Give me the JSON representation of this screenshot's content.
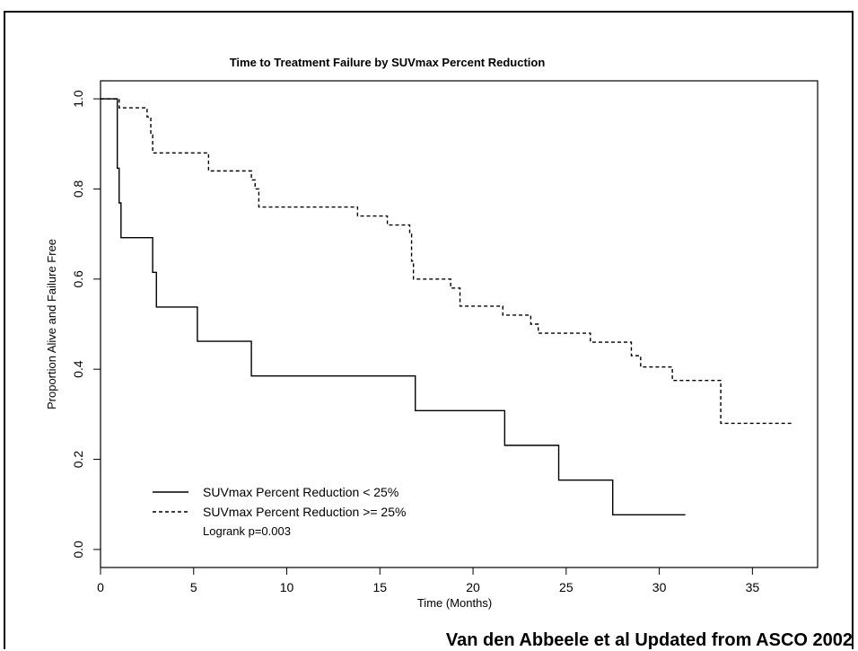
{
  "chart_data": {
    "type": "line",
    "title": "Time to Treatment Failure by SUVmax Percent Reduction",
    "xlabel": "Time (Months)",
    "ylabel": "Proportion Alive and Failure Free",
    "xlim": [
      0,
      38.5
    ],
    "ylim": [
      -0.04,
      1.04
    ],
    "x_ticks": [
      0,
      5,
      10,
      15,
      20,
      25,
      30,
      35
    ],
    "y_ticks": [
      0.0,
      0.2,
      0.4,
      0.6,
      0.8,
      1.0
    ],
    "y_tick_labels": [
      "0.0",
      "0.2",
      "0.4",
      "0.6",
      "0.8",
      "1.0"
    ],
    "grid": false,
    "legend_position": "bottom-left",
    "series": [
      {
        "name": "SUVmax Percent Reduction < 25%",
        "line_style": "solid",
        "color": "#000000",
        "step_points": [
          [
            0,
            1.0
          ],
          [
            0.9,
            0.846
          ],
          [
            1.0,
            0.769
          ],
          [
            1.1,
            0.692
          ],
          [
            2.8,
            0.615
          ],
          [
            3.0,
            0.538
          ],
          [
            5.2,
            0.462
          ],
          [
            8.1,
            0.385
          ],
          [
            16.9,
            0.308
          ],
          [
            21.7,
            0.231
          ],
          [
            24.6,
            0.154
          ],
          [
            27.5,
            0.077
          ],
          [
            31.4,
            0.077
          ]
        ]
      },
      {
        "name": "SUVmax Percent Reduction >= 25%",
        "line_style": "dashed",
        "color": "#000000",
        "step_points": [
          [
            0,
            1.0
          ],
          [
            1.0,
            0.98
          ],
          [
            2.5,
            0.96
          ],
          [
            2.7,
            0.92
          ],
          [
            2.8,
            0.88
          ],
          [
            5.8,
            0.84
          ],
          [
            8.1,
            0.82
          ],
          [
            8.3,
            0.8
          ],
          [
            8.5,
            0.76
          ],
          [
            13.8,
            0.74
          ],
          [
            15.4,
            0.72
          ],
          [
            16.6,
            0.7
          ],
          [
            16.7,
            0.64
          ],
          [
            16.8,
            0.6
          ],
          [
            18.8,
            0.58
          ],
          [
            19.3,
            0.54
          ],
          [
            21.6,
            0.52
          ],
          [
            23.1,
            0.5
          ],
          [
            23.5,
            0.48
          ],
          [
            26.3,
            0.46
          ],
          [
            28.5,
            0.43
          ],
          [
            29.0,
            0.405
          ],
          [
            30.7,
            0.375
          ],
          [
            33.3,
            0.28
          ],
          [
            37.1,
            0.28
          ]
        ]
      }
    ],
    "annotation": "Logrank p=0.003"
  },
  "credit": "Van den Abbeele et al Updated from ASCO 2002"
}
